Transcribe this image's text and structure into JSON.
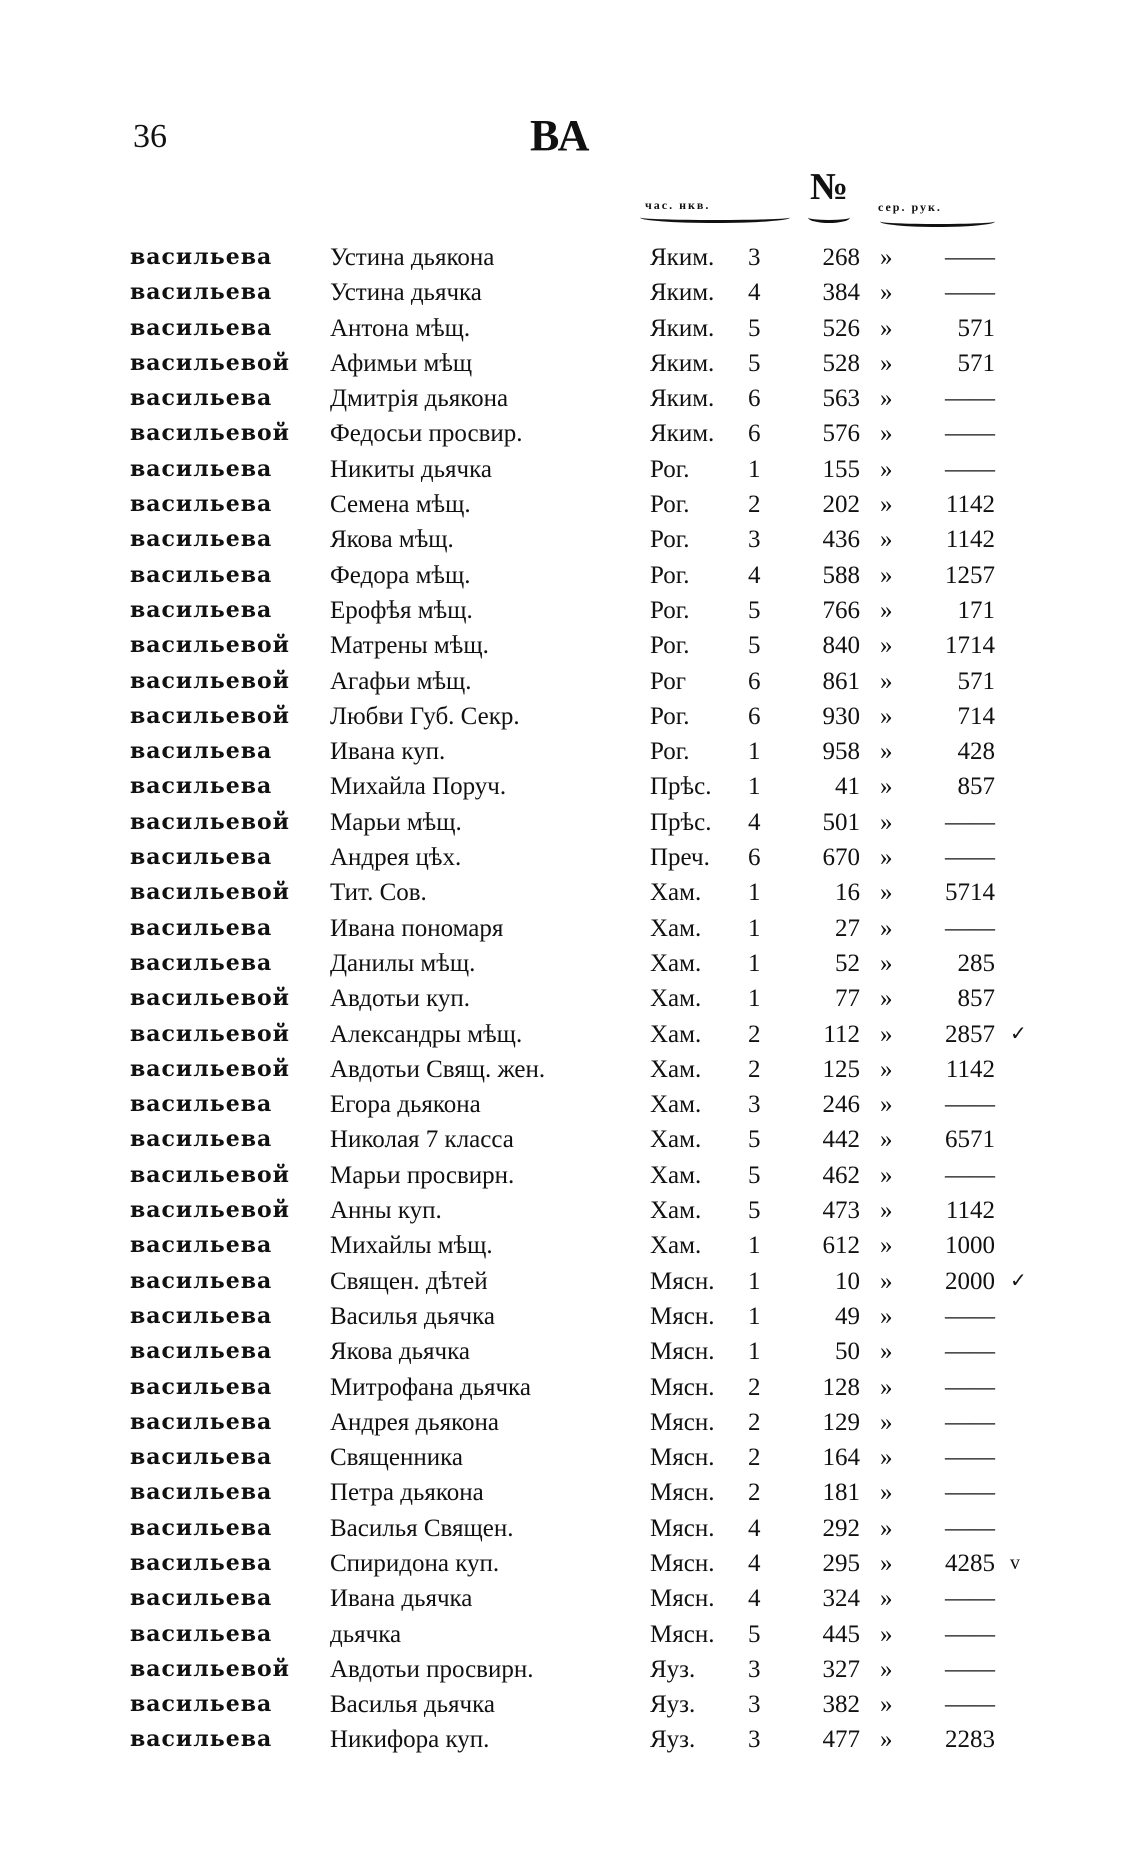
{
  "page_number": "36",
  "running_title": "ВА",
  "columns": {
    "part": "час. нкв.",
    "number": "№",
    "amount": "сер. рук."
  },
  "rows": [
    [
      "васильева",
      "Устина дьякона",
      "Яким.",
      "3",
      "268",
      "»",
      "——",
      ""
    ],
    [
      "васильева",
      "Устина дьячка",
      "Яким.",
      "4",
      "384",
      "»",
      "——",
      ""
    ],
    [
      "васильева",
      "Антона мѣщ.",
      "Яким.",
      "5",
      "526",
      "»",
      "571",
      ""
    ],
    [
      "васильевой",
      "Афимьи мѣщ",
      "Яким.",
      "5",
      "528",
      "»",
      "571",
      ""
    ],
    [
      "васильева",
      "Дмитрія дьякона",
      "Яким.",
      "6",
      "563",
      "»",
      "——",
      ""
    ],
    [
      "васильевой",
      "Федосьи просвир.",
      "Яким.",
      "6",
      "576",
      "»",
      "——",
      ""
    ],
    [
      "васильева",
      "Никиты дьячка",
      "Рог.",
      "1",
      "155",
      "»",
      "——",
      ""
    ],
    [
      "васильева",
      "Семена мѣщ.",
      "Рог.",
      "2",
      "202",
      "»",
      "1142",
      ""
    ],
    [
      "васильева",
      "Якова мѣщ.",
      "Рог.",
      "3",
      "436",
      "»",
      "1142",
      ""
    ],
    [
      "васильева",
      "Федора мѣщ.",
      "Рог.",
      "4",
      "588",
      "»",
      "1257",
      ""
    ],
    [
      "васильева",
      "Ерофѣя мѣщ.",
      "Рог.",
      "5",
      "766",
      "»",
      "171",
      ""
    ],
    [
      "васильевой",
      "Матрены мѣщ.",
      "Рог.",
      "5",
      "840",
      "»",
      "1714",
      ""
    ],
    [
      "васильевой",
      "Агафьи мѣщ.",
      "Рог",
      "6",
      "861",
      "»",
      "571",
      ""
    ],
    [
      "васильевой",
      "Любви Губ. Секр.",
      "Рог.",
      "6",
      "930",
      "»",
      "714",
      ""
    ],
    [
      "васильева",
      "Ивана куп.",
      "Рог.",
      "1",
      "958",
      "»",
      "428",
      ""
    ],
    [
      "васильева",
      "Михайла Поруч.",
      "Прѣс.",
      "1",
      "41",
      "»",
      "857",
      ""
    ],
    [
      "васильевой",
      "Марьи мѣщ.",
      "Прѣс.",
      "4",
      "501",
      "»",
      "——",
      ""
    ],
    [
      "васильева",
      "Андрея цѣх.",
      "Преч.",
      "6",
      "670",
      "»",
      "——",
      ""
    ],
    [
      "васильевой",
      "Тит. Сов.",
      "Хам.",
      "1",
      "16",
      "»",
      "5714",
      ""
    ],
    [
      "васильева",
      "Ивана пономаря",
      "Хам.",
      "1",
      "27",
      "»",
      "——",
      ""
    ],
    [
      "васильева",
      "Данилы мѣщ.",
      "Хам.",
      "1",
      "52",
      "»",
      "285",
      ""
    ],
    [
      "васильевой",
      "Авдотьи куп.",
      "Хам.",
      "1",
      "77",
      "»",
      "857",
      ""
    ],
    [
      "васильевой",
      "Александры мѣщ.",
      "Хам.",
      "2",
      "112",
      "»",
      "2857",
      "✓"
    ],
    [
      "васильевой",
      "Авдотьи Свящ. жен.",
      "Хам.",
      "2",
      "125",
      "»",
      "1142",
      ""
    ],
    [
      "васильева",
      "Егора дьякона",
      "Хам.",
      "3",
      "246",
      "»",
      "——",
      ""
    ],
    [
      "васильева",
      "Николая 7 класса",
      "Хам.",
      "5",
      "442",
      "»",
      "6571",
      ""
    ],
    [
      "васильевой",
      "Марьи просвирн.",
      "Хам.",
      "5",
      "462",
      "»",
      "——",
      ""
    ],
    [
      "васильевой",
      "Анны куп.",
      "Хам.",
      "5",
      "473",
      "»",
      "1142",
      ""
    ],
    [
      "васильева",
      "Михайлы мѣщ.",
      "Хам.",
      "1",
      "612",
      "»",
      "1000",
      ""
    ],
    [
      "васильева",
      "Священ. дѣтей",
      "Мясн.",
      "1",
      "10",
      "»",
      "2000",
      "✓"
    ],
    [
      "васильева",
      "Василья дьячка",
      "Мясн.",
      "1",
      "49",
      "»",
      "——",
      ""
    ],
    [
      "васильева",
      "Якова дьячка",
      "Мясн.",
      "1",
      "50",
      "»",
      "——",
      ""
    ],
    [
      "васильева",
      "Митрофана дьячка",
      "Мясн.",
      "2",
      "128",
      "»",
      "——",
      ""
    ],
    [
      "васильева",
      "Андрея дьякона",
      "Мясн.",
      "2",
      "129",
      "»",
      "——",
      ""
    ],
    [
      "васильева",
      "Священника",
      "Мясн.",
      "2",
      "164",
      "»",
      "——",
      ""
    ],
    [
      "васильева",
      "Петра дьякона",
      "Мясн.",
      "2",
      "181",
      "»",
      "——",
      ""
    ],
    [
      "васильева",
      "Василья Священ.",
      "Мясн.",
      "4",
      "292",
      "»",
      "——",
      ""
    ],
    [
      "васильева",
      "Спиридона куп.",
      "Мясн.",
      "4",
      "295",
      "»",
      "4285",
      "v"
    ],
    [
      "васильева",
      "Ивана дьячка",
      "Мясн.",
      "4",
      "324",
      "»",
      "——",
      ""
    ],
    [
      "васильева",
      "дьячка",
      "Мясн.",
      "5",
      "445",
      "»",
      "——",
      ""
    ],
    [
      "васильевой",
      "Авдотьи просвирн.",
      "Яуз.",
      "3",
      "327",
      "»",
      "——",
      ""
    ],
    [
      "васильева",
      "Василья дьячка",
      "Яуз.",
      "3",
      "382",
      "»",
      "——",
      ""
    ],
    [
      "васильева",
      "Никифора куп.",
      "Яуз.",
      "3",
      "477",
      "»",
      "2283",
      ""
    ]
  ]
}
